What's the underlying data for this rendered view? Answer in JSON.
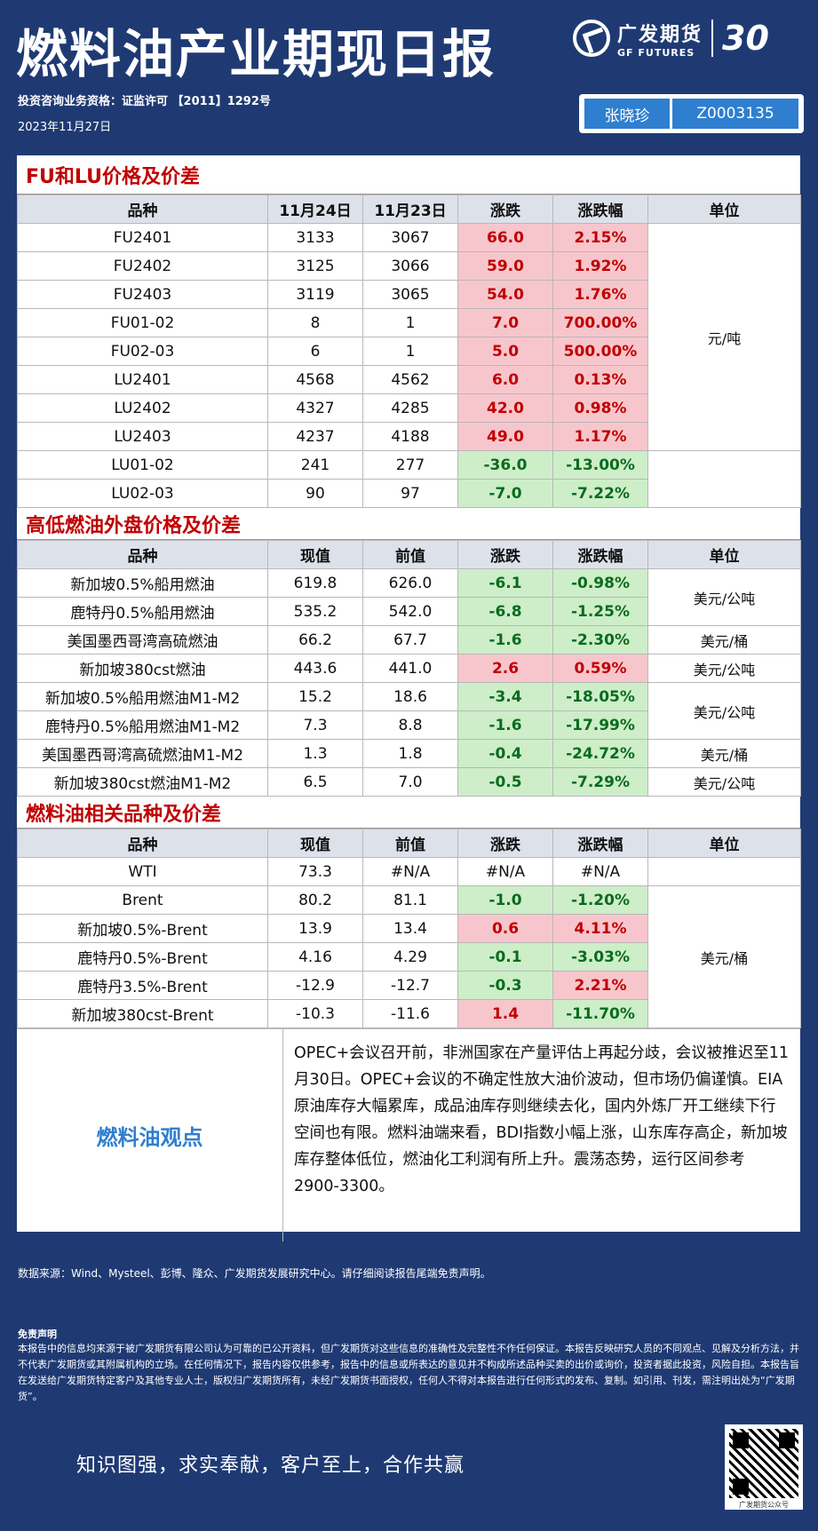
{
  "header": {
    "title": "燃料油产业期现日报",
    "license": "投资咨询业务资格：证监许可 【2011】1292号",
    "date": "2023年11月27日",
    "logo_cn": "广发期货",
    "logo_en": "GF FUTURES",
    "logo_anniversary": "30",
    "author_name": "张晓珍",
    "author_id": "Z0003135"
  },
  "section1": {
    "title": "FU和LU价格及价差",
    "headers": [
      "品种",
      "11月24日",
      "11月23日",
      "涨跌",
      "涨跌幅",
      "单位"
    ],
    "unit": "元/吨",
    "rows": [
      {
        "name": "FU2401",
        "a": "3133",
        "b": "3067",
        "chg": "66.0",
        "pct": "2.15%",
        "dir": "up"
      },
      {
        "name": "FU2402",
        "a": "3125",
        "b": "3066",
        "chg": "59.0",
        "pct": "1.92%",
        "dir": "up"
      },
      {
        "name": "FU2403",
        "a": "3119",
        "b": "3065",
        "chg": "54.0",
        "pct": "1.76%",
        "dir": "up"
      },
      {
        "name": "FU01-02",
        "a": "8",
        "b": "1",
        "chg": "7.0",
        "pct": "700.00%",
        "dir": "up"
      },
      {
        "name": "FU02-03",
        "a": "6",
        "b": "1",
        "chg": "5.0",
        "pct": "500.00%",
        "dir": "up"
      },
      {
        "name": "LU2401",
        "a": "4568",
        "b": "4562",
        "chg": "6.0",
        "pct": "0.13%",
        "dir": "up"
      },
      {
        "name": "LU2402",
        "a": "4327",
        "b": "4285",
        "chg": "42.0",
        "pct": "0.98%",
        "dir": "up"
      },
      {
        "name": "LU2403",
        "a": "4237",
        "b": "4188",
        "chg": "49.0",
        "pct": "1.17%",
        "dir": "up"
      },
      {
        "name": "LU01-02",
        "a": "241",
        "b": "277",
        "chg": "-36.0",
        "pct": "-13.00%",
        "dir": "down"
      },
      {
        "name": "LU02-03",
        "a": "90",
        "b": "97",
        "chg": "-7.0",
        "pct": "-7.22%",
        "dir": "down"
      }
    ]
  },
  "section2": {
    "title": "高低燃油外盘价格及价差",
    "headers": [
      "品种",
      "现值",
      "前值",
      "涨跌",
      "涨跌幅",
      "单位"
    ],
    "rows": [
      {
        "name": "新加坡0.5%船用燃油",
        "a": "619.8",
        "b": "626.0",
        "chg": "-6.1",
        "pct": "-0.98%",
        "chg_dir": "down",
        "pct_dir": "down"
      },
      {
        "name": "鹿特丹0.5%船用燃油",
        "a": "535.2",
        "b": "542.0",
        "chg": "-6.8",
        "pct": "-1.25%",
        "chg_dir": "down",
        "pct_dir": "down"
      },
      {
        "name": "美国墨西哥湾高硫燃油",
        "a": "66.2",
        "b": "67.7",
        "chg": "-1.6",
        "pct": "-2.30%",
        "chg_dir": "down",
        "pct_dir": "down"
      },
      {
        "name": "新加坡380cst燃油",
        "a": "443.6",
        "b": "441.0",
        "chg": "2.6",
        "pct": "0.59%",
        "chg_dir": "up",
        "pct_dir": "up"
      },
      {
        "name": "新加坡0.5%船用燃油M1-M2",
        "a": "15.2",
        "b": "18.6",
        "chg": "-3.4",
        "pct": "-18.05%",
        "chg_dir": "down",
        "pct_dir": "down"
      },
      {
        "name": "鹿特丹0.5%船用燃油M1-M2",
        "a": "7.3",
        "b": "8.8",
        "chg": "-1.6",
        "pct": "-17.99%",
        "chg_dir": "down",
        "pct_dir": "down"
      },
      {
        "name": "美国墨西哥湾高硫燃油M1-M2",
        "a": "1.3",
        "b": "1.8",
        "chg": "-0.4",
        "pct": "-24.72%",
        "chg_dir": "down",
        "pct_dir": "down"
      },
      {
        "name": "新加坡380cst燃油M1-M2",
        "a": "6.5",
        "b": "7.0",
        "chg": "-0.5",
        "pct": "-7.29%",
        "chg_dir": "down",
        "pct_dir": "down"
      }
    ],
    "units": [
      "美元/公吨",
      "美元/桶",
      "美元/公吨",
      "美元/公吨",
      "美元/桶",
      "美元/公吨"
    ]
  },
  "section3": {
    "title": "燃料油相关品种及价差",
    "headers": [
      "品种",
      "现值",
      "前值",
      "涨跌",
      "涨跌幅",
      "单位"
    ],
    "unit": "美元/桶",
    "rows": [
      {
        "name": "WTI",
        "a": "73.3",
        "b": "#N/A",
        "chg": "#N/A",
        "pct": "#N/A",
        "chg_dir": "neutral",
        "pct_dir": "neutral"
      },
      {
        "name": "Brent",
        "a": "80.2",
        "b": "81.1",
        "chg": "-1.0",
        "pct": "-1.20%",
        "chg_dir": "down",
        "pct_dir": "down"
      },
      {
        "name": "新加坡0.5%-Brent",
        "a": "13.9",
        "b": "13.4",
        "chg": "0.6",
        "pct": "4.11%",
        "chg_dir": "up",
        "pct_dir": "up"
      },
      {
        "name": "鹿特丹0.5%-Brent",
        "a": "4.16",
        "b": "4.29",
        "chg": "-0.1",
        "pct": "-3.03%",
        "chg_dir": "down",
        "pct_dir": "down"
      },
      {
        "name": "鹿特丹3.5%-Brent",
        "a": "-12.9",
        "b": "-12.7",
        "chg": "-0.3",
        "pct": "2.21%",
        "chg_dir": "down",
        "pct_dir": "up"
      },
      {
        "name": "新加坡380cst-Brent",
        "a": "-10.3",
        "b": "-11.6",
        "chg": "1.4",
        "pct": "-11.70%",
        "chg_dir": "up",
        "pct_dir": "down"
      }
    ]
  },
  "opinion": {
    "label": "燃料油观点",
    "text": "OPEC+会议召开前，非洲国家在产量评估上再起分歧，会议被推迟至11月30日。OPEC+会议的不确定性放大油价波动，但市场仍偏谨慎。EIA原油库存大幅累库，成品油库存则继续去化，国内外炼厂开工继续下行空间也有限。燃料油端来看，BDI指数小幅上涨，山东库存高企，新加坡库存整体低位，燃油化工利润有所上升。震荡态势，运行区间参考2900-3300。"
  },
  "footer": {
    "sources": "数据来源：Wind、Mysteel、彭博、隆众、广发期货发展研究中心。请仔细阅读报告尾端免责声明。",
    "disclaimer_title": "免责声明",
    "disclaimer": "本报告中的信息均来源于被广发期货有限公司认为可靠的已公开资料，但广发期货对这些信息的准确性及完整性不作任何保证。本报告反映研究人员的不同观点、见解及分析方法，并不代表广发期货或其附属机构的立场。在任何情况下，报告内容仅供参考，报告中的信息或所表达的意见并不构成所述品种买卖的出价或询价，投资者据此投资，风险自担。本报告旨在发送给广发期货特定客户及其他专业人士，版权归广发期货所有，未经广发期货书面授权，任何人不得对本报告进行任何形式的发布、复制。如引用、刊发，需注明出处为“广发期货”。",
    "motto": "知识图强，求实奉献，客户至上，合作共赢",
    "qr_caption": "广发期货公众号"
  }
}
